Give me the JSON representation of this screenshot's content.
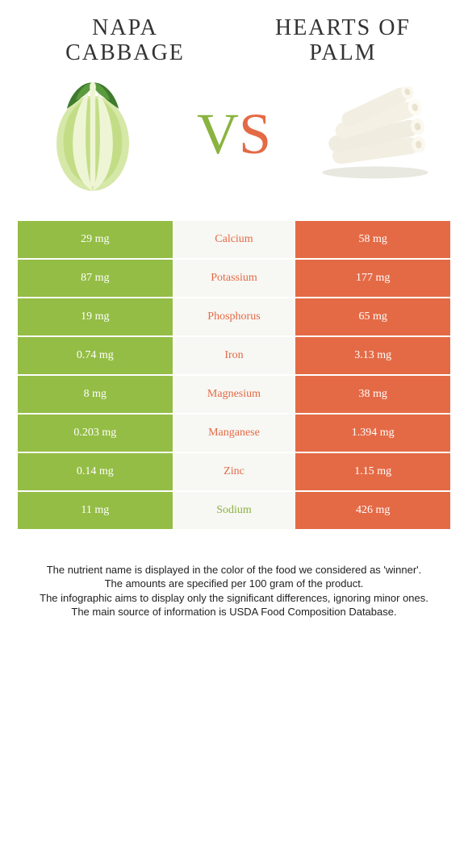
{
  "colors": {
    "left_bar": "#94bd45",
    "right_bar": "#e46a46",
    "mid_bg": "#f7f7f3",
    "label_winner_right": "#e46a46",
    "label_winner_left": "#8ab33f",
    "vs_color_left": "#8ab33f",
    "vs_color_right": "#e46a46"
  },
  "left_title": "Napa cabbage",
  "right_title": "Hearts of palm",
  "vs_left": "V",
  "vs_right": "S",
  "rows": [
    {
      "left": "29 mg",
      "label": "Calcium",
      "right": "58 mg",
      "winner": "right"
    },
    {
      "left": "87 mg",
      "label": "Potassium",
      "right": "177 mg",
      "winner": "right"
    },
    {
      "left": "19 mg",
      "label": "Phosphorus",
      "right": "65 mg",
      "winner": "right"
    },
    {
      "left": "0.74 mg",
      "label": "Iron",
      "right": "3.13 mg",
      "winner": "right"
    },
    {
      "left": "8 mg",
      "label": "Magnesium",
      "right": "38 mg",
      "winner": "right"
    },
    {
      "left": "0.203 mg",
      "label": "Manganese",
      "right": "1.394 mg",
      "winner": "right"
    },
    {
      "left": "0.14 mg",
      "label": "Zinc",
      "right": "1.15 mg",
      "winner": "right"
    },
    {
      "left": "11 mg",
      "label": "Sodium",
      "right": "426 mg",
      "winner": "left"
    }
  ],
  "footnotes": [
    "The nutrient name is displayed in the color of the food we considered as 'winner'.",
    "The amounts are specified per 100 gram of the product.",
    "The infographic aims to display only the significant differences, ignoring minor ones.",
    "The main source of information is USDA Food Composition Database."
  ]
}
